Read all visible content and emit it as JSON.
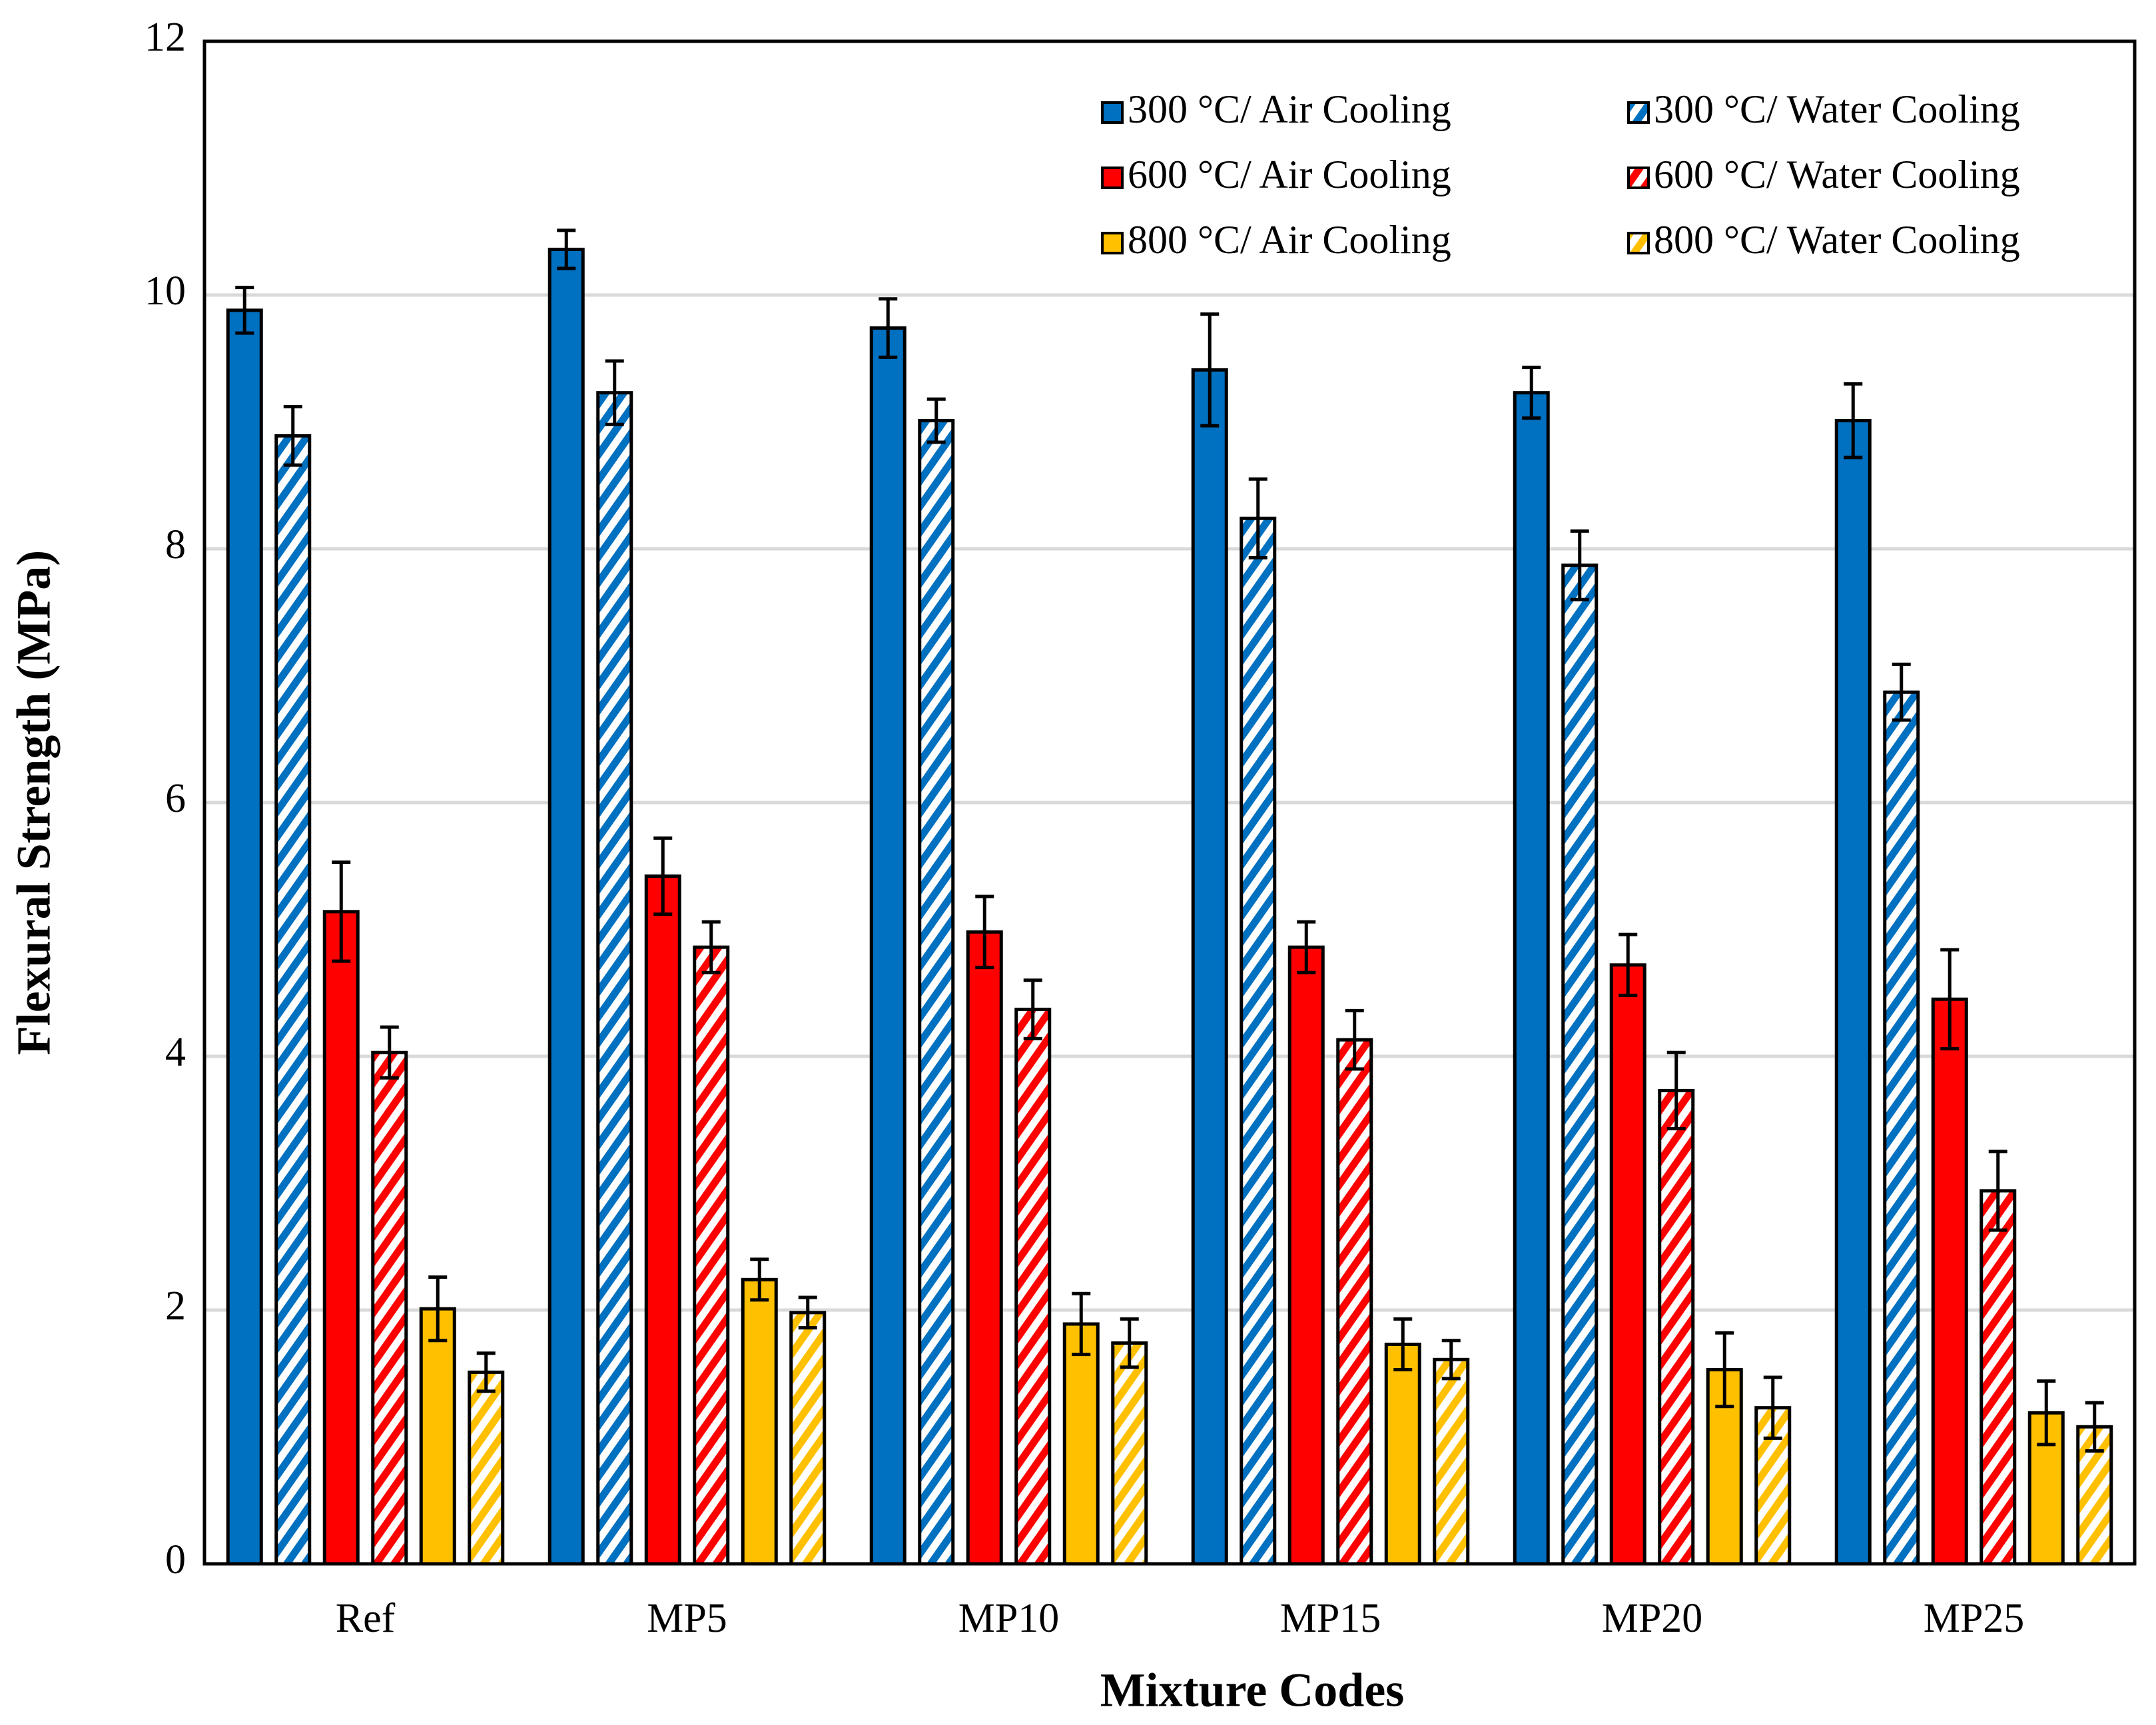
{
  "chart_data": {
    "type": "bar",
    "x_label": "Mixture Codes",
    "y_label": "Flexural Strength (MPa)",
    "categories": [
      "Ref",
      "MP5",
      "MP10",
      "MP15",
      "MP20",
      "MP25"
    ],
    "ylim": [
      0,
      12
    ],
    "yticks": [
      0,
      2,
      4,
      6,
      8,
      10,
      12
    ],
    "grid": true,
    "legend": "upper right",
    "series": [
      {
        "name": "300 °C/ Air Cooling",
        "color": "#0070c0",
        "hatch": false,
        "values": [
          9.88,
          10.36,
          9.74,
          9.41,
          9.23,
          9.01
        ],
        "errors": [
          0.18,
          0.15,
          0.23,
          0.44,
          0.2,
          0.29
        ]
      },
      {
        "name": "300 °C/ Water Cooling",
        "color": "#0070c0",
        "hatch": true,
        "values": [
          8.89,
          9.23,
          9.01,
          8.24,
          7.87,
          6.87
        ],
        "errors": [
          0.23,
          0.25,
          0.17,
          0.31,
          0.27,
          0.22
        ]
      },
      {
        "name": "600 °C/ Air Cooling",
        "color": "#ff0000",
        "hatch": false,
        "values": [
          5.14,
          5.42,
          4.98,
          4.86,
          4.72,
          4.45
        ],
        "errors": [
          0.39,
          0.3,
          0.28,
          0.2,
          0.24,
          0.39
        ]
      },
      {
        "name": "600 °C/ Water Cooling",
        "color": "#ff0000",
        "hatch": true,
        "values": [
          4.03,
          4.86,
          4.37,
          4.13,
          3.73,
          2.94
        ],
        "errors": [
          0.2,
          0.2,
          0.23,
          0.23,
          0.3,
          0.31
        ]
      },
      {
        "name": "800 °C/ Air Cooling",
        "color": "#ffc000",
        "hatch": false,
        "values": [
          2.01,
          2.24,
          1.89,
          1.73,
          1.53,
          1.19
        ],
        "errors": [
          0.25,
          0.16,
          0.24,
          0.2,
          0.29,
          0.25
        ]
      },
      {
        "name": "800 °C/ Water Cooling",
        "color": "#ffc000",
        "hatch": true,
        "values": [
          1.51,
          1.98,
          1.74,
          1.61,
          1.23,
          1.08
        ],
        "errors": [
          0.15,
          0.12,
          0.19,
          0.15,
          0.24,
          0.19
        ]
      }
    ]
  }
}
